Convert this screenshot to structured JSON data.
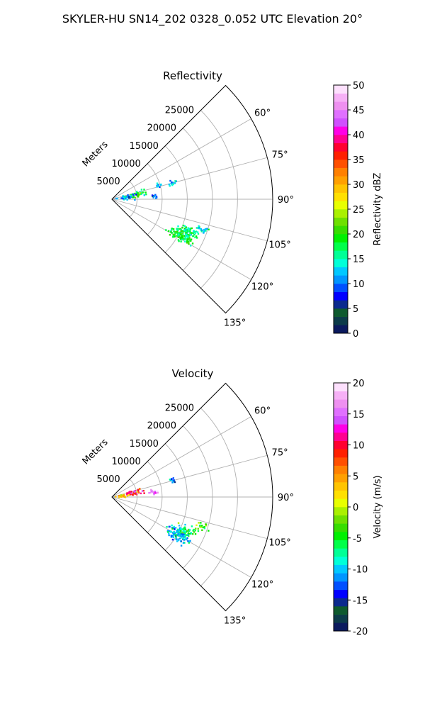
{
  "figure": {
    "suptitle": "SKYLER-HU  SN14_202  0328_0.052 UTC Elevation 20°"
  },
  "chart_data": [
    {
      "type": "scatter",
      "projection": "polar-sector",
      "title": "Reflectivity",
      "radial_axis_label": "Meters",
      "radial_ticks": [
        5000,
        10000,
        15000,
        20000,
        25000
      ],
      "radial_tick_labels": [
        "5000",
        "10000",
        "15000",
        "20000",
        "25000"
      ],
      "rlim": [
        0,
        32000
      ],
      "azimuth_range_deg": [
        45,
        135
      ],
      "azimuth_ticks_deg": [
        60,
        75,
        90,
        105,
        120,
        135
      ],
      "azimuth_tick_labels": [
        "60°",
        "75°",
        "90°",
        "105°",
        "120°",
        "135°"
      ],
      "grid": true,
      "colorbar": {
        "label": "Reflectivity dBZ",
        "vmin": 0,
        "vmax": 50,
        "ticks": [
          0,
          5,
          10,
          15,
          20,
          25,
          30,
          35,
          40,
          45,
          50
        ],
        "tick_labels": [
          "0",
          "5",
          "10",
          "15",
          "20",
          "25",
          "30",
          "35",
          "40",
          "45",
          "50"
        ],
        "colors": [
          "#0b1a5e",
          "#0c3b49",
          "#0e5a2e",
          "#0b2a8e",
          "#0000ff",
          "#0050ff",
          "#0095ff",
          "#00c8ff",
          "#00ffd8",
          "#00ff96",
          "#00ff4a",
          "#00f000",
          "#37dd00",
          "#6ee000",
          "#aaf000",
          "#e8ff00",
          "#ffe000",
          "#ffc400",
          "#ffa000",
          "#ff8000",
          "#ff5000",
          "#ff2000",
          "#ff0030",
          "#ff0090",
          "#ff00e6",
          "#d050ff",
          "#e070ff",
          "#ee90f0",
          "#f6b0f6",
          "#fde0fd"
        ]
      },
      "clusters": [
        {
          "az_deg": 73,
          "range_m": 9600,
          "value_dbz": 13,
          "spread_az_deg": 2.0,
          "spread_range_m": 600,
          "count": 14
        },
        {
          "az_deg": 86,
          "range_m": 8500,
          "value_dbz": 9,
          "spread_az_deg": 3.0,
          "spread_range_m": 600,
          "count": 12
        },
        {
          "az_deg": 75,
          "range_m": 12500,
          "value_dbz": 12,
          "spread_az_deg": 2.0,
          "spread_range_m": 600,
          "count": 12
        },
        {
          "az_deg": 79,
          "range_m": 5000,
          "value_dbz": 18,
          "spread_az_deg": 5.0,
          "spread_range_m": 1500,
          "count": 40
        },
        {
          "az_deg": 84,
          "range_m": 3000,
          "value_dbz": 11,
          "spread_az_deg": 6.0,
          "spread_range_m": 1400,
          "count": 40
        },
        {
          "az_deg": 118,
          "range_m": 15500,
          "value_dbz": 18,
          "spread_az_deg": 4.0,
          "spread_range_m": 2000,
          "count": 140
        },
        {
          "az_deg": 112,
          "range_m": 16500,
          "value_dbz": 16,
          "spread_az_deg": 3.0,
          "spread_range_m": 1500,
          "count": 40
        },
        {
          "az_deg": 108,
          "range_m": 19000,
          "value_dbz": 14,
          "spread_az_deg": 2.0,
          "spread_range_m": 1000,
          "count": 20
        }
      ]
    },
    {
      "type": "scatter",
      "projection": "polar-sector",
      "title": "Velocity",
      "radial_axis_label": "Meters",
      "radial_ticks": [
        5000,
        10000,
        15000,
        20000,
        25000
      ],
      "radial_tick_labels": [
        "5000",
        "10000",
        "15000",
        "20000",
        "25000"
      ],
      "rlim": [
        0,
        32000
      ],
      "azimuth_range_deg": [
        45,
        135
      ],
      "azimuth_ticks_deg": [
        60,
        75,
        90,
        105,
        120,
        135
      ],
      "azimuth_tick_labels": [
        "60°",
        "75°",
        "90°",
        "105°",
        "120°",
        "135°"
      ],
      "grid": true,
      "colorbar": {
        "label": "Velocity (m/s)",
        "vmin": -20,
        "vmax": 20,
        "ticks": [
          -20,
          -15,
          -10,
          -5,
          0,
          5,
          10,
          15,
          20
        ],
        "tick_labels": [
          "-20",
          "-15",
          "-10",
          "-5",
          "0",
          "5",
          "10",
          "15",
          "20"
        ],
        "colors": [
          "#0b1a5e",
          "#0c3b49",
          "#0e5a2e",
          "#0b2a8e",
          "#0000ff",
          "#0050ff",
          "#0095ff",
          "#00c8ff",
          "#00ffd8",
          "#00ff96",
          "#00ff4a",
          "#00f000",
          "#37dd00",
          "#6ee000",
          "#aaf000",
          "#e8ff00",
          "#ffe000",
          "#ffc400",
          "#ffa000",
          "#ff8000",
          "#ff5000",
          "#ff2000",
          "#ff0030",
          "#ff0090",
          "#ff00e6",
          "#d050ff",
          "#e070ff",
          "#ee90f0",
          "#f6b0f6",
          "#fde0fd"
        ]
      },
      "clusters": [
        {
          "az_deg": 75,
          "range_m": 12500,
          "value_ms": -12,
          "spread_az_deg": 2.0,
          "spread_range_m": 600,
          "count": 12
        },
        {
          "az_deg": 83,
          "range_m": 8400,
          "value_ms": 16,
          "spread_az_deg": 3.0,
          "spread_range_m": 800,
          "count": 18
        },
        {
          "az_deg": 79,
          "range_m": 4500,
          "value_ms": 10,
          "spread_az_deg": 5.0,
          "spread_range_m": 1500,
          "count": 40
        },
        {
          "az_deg": 85,
          "range_m": 2000,
          "value_ms": 3,
          "spread_az_deg": 5.0,
          "spread_range_m": 900,
          "count": 30
        },
        {
          "az_deg": 119,
          "range_m": 15500,
          "value_ms": -10,
          "spread_az_deg": 4.0,
          "spread_range_m": 2000,
          "count": 130
        },
        {
          "az_deg": 114,
          "range_m": 16500,
          "value_ms": -6,
          "spread_az_deg": 3.0,
          "spread_range_m": 1500,
          "count": 40
        },
        {
          "az_deg": 108,
          "range_m": 19000,
          "value_ms": -3,
          "spread_az_deg": 2.0,
          "spread_range_m": 1000,
          "count": 20
        }
      ]
    }
  ]
}
